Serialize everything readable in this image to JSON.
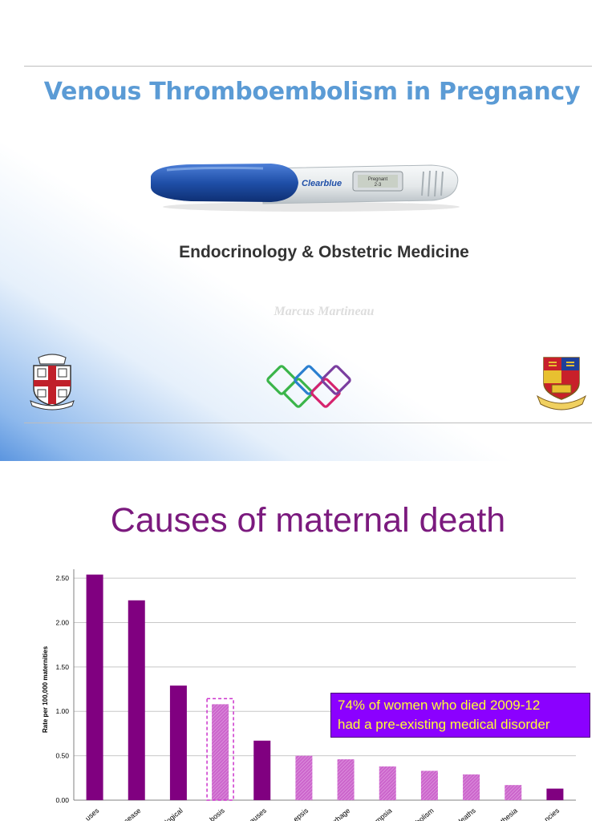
{
  "slide1": {
    "title": "Venous Thromboembolism in Pregnancy",
    "subtitle": "Endocrinology & Obstetric Medicine",
    "author": "Marcus Martineau",
    "test_brand": "Clearblue",
    "test_display_line1": "Pregnant",
    "test_display_line2": "2-3",
    "colors": {
      "title": "#5b9bd5",
      "test_blue": "#1f4fa8",
      "logo_green": "#3bb54a",
      "logo_blue": "#2b7fd0",
      "logo_purple": "#7b3fa0",
      "logo_red": "#d6246e"
    },
    "icons": [
      "university-crest-icon",
      "diamond-logo-icon",
      "college-crest-icon",
      "pregnancy-test-image"
    ]
  },
  "slide2": {
    "title": "Causes of maternal death",
    "callout_line1": "74% of women who died  2009-12",
    "callout_line2": "had a pre-existing medical disorder",
    "colors": {
      "title": "#7b1a7e",
      "bar_dark": "#800080",
      "bar_light": "#cc66cc",
      "callout_bg": "#8b00ff",
      "callout_text": "#ffff33"
    }
  },
  "chart_data": {
    "type": "bar",
    "ylabel": "Rate per 100,000 maternities",
    "yticks": [
      "0.00",
      "0.50",
      "1.00",
      "1.50",
      "2.00",
      "2.50"
    ],
    "ylim": [
      0,
      2.6
    ],
    "grid": true,
    "categories": [
      "...uses",
      "...sease",
      "...logical",
      "...bosis",
      "...auses",
      "...epsis",
      "...rrhage",
      "...mpsia",
      "...bolism",
      "...deaths",
      "...thesia",
      "...ncies"
    ],
    "values": [
      2.54,
      2.25,
      1.29,
      1.08,
      0.67,
      0.5,
      0.46,
      0.38,
      0.33,
      0.29,
      0.17,
      0.13
    ],
    "styles": [
      "dark",
      "dark",
      "dark",
      "light",
      "dark",
      "light",
      "light",
      "light",
      "light",
      "light",
      "light",
      "dark"
    ],
    "highlighted_index": 3
  }
}
